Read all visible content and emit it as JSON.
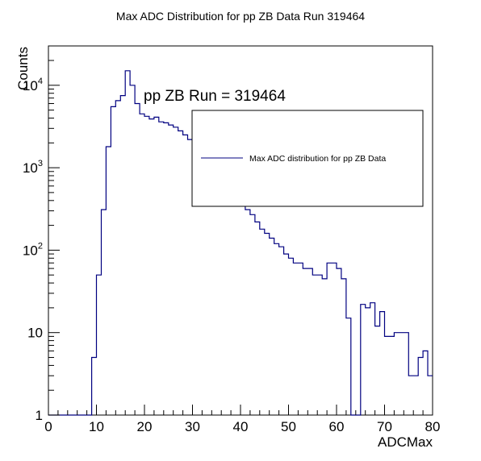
{
  "chart_data": {
    "type": "histogram",
    "title": "Max ADC Distribution for pp ZB Data Run 319464",
    "xlabel": "ADCMax",
    "ylabel": "Counts",
    "xlim": [
      0,
      80
    ],
    "ylim": [
      1,
      30000
    ],
    "yscale": "log",
    "grid": false,
    "bin_width": 1,
    "x_ticks": [
      "0",
      "10",
      "20",
      "30",
      "40",
      "50",
      "60",
      "70",
      "80"
    ],
    "y_ticks": [
      {
        "base": "1",
        "exp": ""
      },
      {
        "base": "10",
        "exp": ""
      },
      {
        "base": "10",
        "exp": "2"
      },
      {
        "base": "10",
        "exp": "3"
      },
      {
        "base": "10",
        "exp": "4"
      }
    ],
    "annotation": "pp ZB Run = 319464",
    "legend": {
      "placement": "top-right",
      "entries": [
        {
          "label": "Max ADC distribution for pp ZB Data",
          "color": "#000080"
        }
      ]
    },
    "series": [
      {
        "color": "#000080",
        "bin_edges_start": 0,
        "values": [
          1,
          1,
          1,
          1,
          1,
          1,
          1,
          1,
          1,
          5,
          50,
          310,
          1800,
          5500,
          6500,
          7500,
          15000,
          10000,
          6000,
          4500,
          4200,
          3900,
          4100,
          3600,
          3500,
          3300,
          3100,
          2800,
          2500,
          2200,
          2100,
          1900,
          1700,
          1500,
          1300,
          1100,
          900,
          700,
          600,
          450,
          350,
          310,
          270,
          220,
          180,
          160,
          140,
          120,
          110,
          90,
          80,
          70,
          70,
          60,
          60,
          50,
          50,
          45,
          70,
          70,
          60,
          45,
          15,
          1,
          1,
          22,
          20,
          23,
          12,
          18,
          9,
          9,
          10,
          10,
          10,
          3,
          3,
          5,
          6,
          3,
          2,
          3
        ]
      }
    ]
  }
}
